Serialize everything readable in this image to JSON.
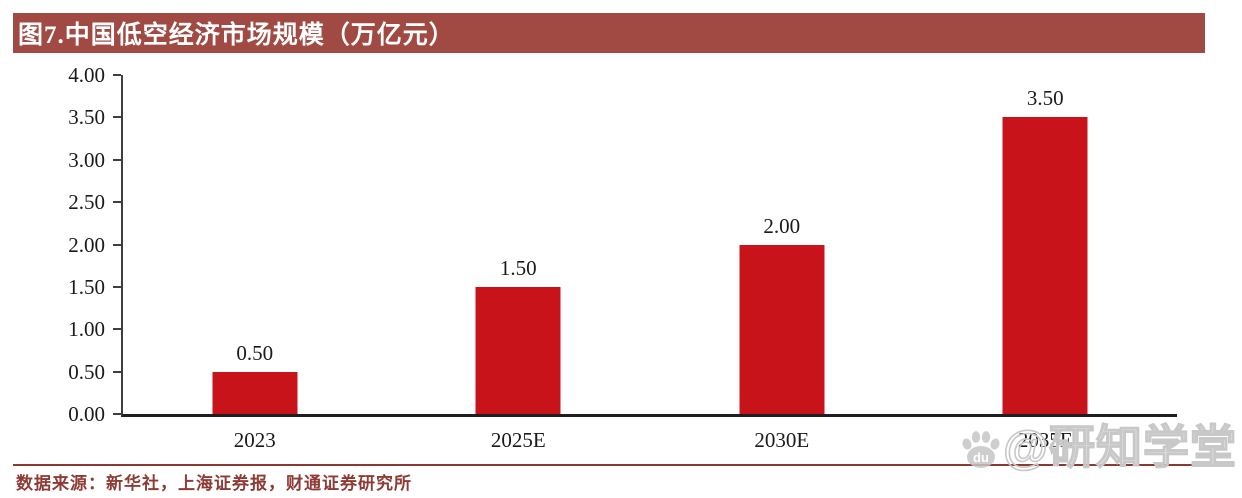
{
  "header": {
    "title": "图7.中国低空经济市场规模（万亿元）"
  },
  "chart_data": {
    "type": "bar",
    "title": "图7.中国低空经济市场规模（万亿元）",
    "categories": [
      "2023",
      "2025E",
      "2030E",
      "2035E"
    ],
    "values": [
      0.5,
      1.5,
      2.0,
      3.5
    ],
    "value_labels": [
      "0.50",
      "1.50",
      "2.00",
      "3.50"
    ],
    "xlabel": "",
    "ylabel": "",
    "ylim": [
      0,
      4
    ],
    "ytick_step": 0.5,
    "ytick_labels": [
      "0.00",
      "0.50",
      "1.00",
      "1.50",
      "2.00",
      "2.50",
      "3.00",
      "3.50",
      "4.00"
    ],
    "grid": false,
    "legend_position": "none"
  },
  "footer": {
    "source_text": "数据来源：新华社，上海证券报，财通证券研究所"
  },
  "watermark": {
    "text": "@研知学堂",
    "badge_text": "du"
  },
  "colors": {
    "header_bg": "#A14A44",
    "header_text": "#FFFFFF",
    "bar": "#C8131A",
    "axis_line": "#3F3F3F",
    "baseline": "#1F1F1F",
    "tick_mark": "#3F3F3F",
    "label_text": "#1A1A1A",
    "divider": "#8B3A33",
    "source_text": "#8E3B36",
    "watermark_stroke": "#C8C8C8"
  }
}
